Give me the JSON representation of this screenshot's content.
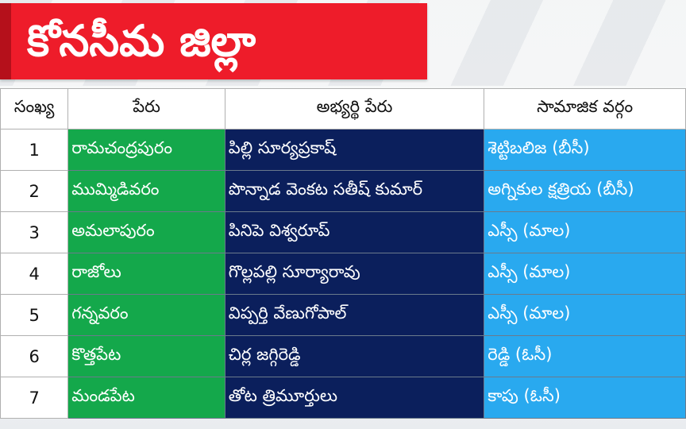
{
  "header": {
    "title": "కోనసీమ జిల్లా"
  },
  "colors": {
    "banner": "#ee1c2a",
    "constituency_column": "#14a84b",
    "candidate_column": "#0b1f5c",
    "caste_column": "#29a9ef"
  },
  "table": {
    "headers": [
      "సంఖ్య",
      "పేరు",
      "అభ్యర్థి పేరు",
      "సామాజిక వర్గం"
    ],
    "rows": [
      {
        "no": "1",
        "constituency": "రామచంద్రపురం",
        "candidate": "పిల్లి సూర్యప్రకాష్",
        "caste": "శెట్టిబలిజ (బీసీ)"
      },
      {
        "no": "2",
        "constituency": "ముమ్మిడివరం",
        "candidate": "పొన్నాడ వెంకట సతీష్ కుమార్",
        "caste": "అగ్నికుల క్షత్రియ (బీసీ)"
      },
      {
        "no": "3",
        "constituency": "అమలాపురం",
        "candidate": "పినిపె విశ్వరూప్",
        "caste": "ఎస్సీ (మాల)"
      },
      {
        "no": "4",
        "constituency": "రాజోలు",
        "candidate": "గొల్లపల్లి సూర్యారావు",
        "caste": "ఎస్సీ (మాల)"
      },
      {
        "no": "5",
        "constituency": "గన్నవరం",
        "candidate": "విప్పర్తి వేణుగోపాల్",
        "caste": "ఎస్సీ (మాల)"
      },
      {
        "no": "6",
        "constituency": "కొత్తపేట",
        "candidate": "చిర్ల జగ్గిరెడ్డి",
        "caste": "రెడ్డి (ఓసీ)"
      },
      {
        "no": "7",
        "constituency": "మండపేట",
        "candidate": "తోట త్రిమూర్తులు",
        "caste": "కాపు (ఓసీ)"
      }
    ]
  }
}
